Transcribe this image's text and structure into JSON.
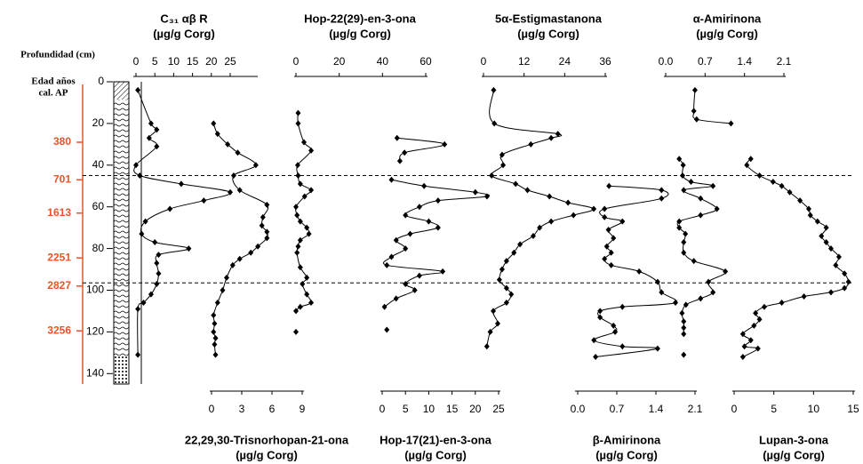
{
  "chart_data": [
    {
      "type": "depth-axis",
      "title": "Profundidad (cm)",
      "ylim": [
        0,
        145
      ],
      "yticks": [
        0,
        20,
        40,
        60,
        80,
        100,
        120,
        140
      ],
      "age_title": [
        "Edad años",
        "cal. AP"
      ],
      "age_color": "#e8542a",
      "age_ticks": [
        {
          "value": 29,
          "label": "380"
        },
        {
          "value": 47,
          "label": "701"
        },
        {
          "value": 63,
          "label": "1613"
        },
        {
          "value": 84.5,
          "label": "2251"
        },
        {
          "value": 98,
          "label": "2827"
        },
        {
          "value": 119.5,
          "label": "3256"
        }
      ],
      "reference_lines": [
        45,
        96.5
      ]
    },
    {
      "type": "profile",
      "title": "C₃₁ αβ R",
      "subtitle": "(µg/g Corg)",
      "axis_side": "top",
      "color": "#000000",
      "xlim": [
        0,
        25
      ],
      "xticks": [
        0,
        5,
        10,
        15,
        20,
        25
      ],
      "depth": [
        4,
        20,
        23,
        27,
        31,
        40,
        45,
        49,
        53,
        57,
        61,
        67,
        73,
        77,
        80,
        83,
        87,
        92,
        97,
        102,
        106,
        109,
        131
      ],
      "values": [
        0.5,
        4,
        5.5,
        3.5,
        5.5,
        0,
        1,
        12,
        25,
        18,
        9,
        2.5,
        1.5,
        5,
        14,
        6,
        5.5,
        6,
        5.5,
        4,
        2,
        0.5,
        0.5
      ]
    },
    {
      "type": "profile",
      "title": "22,29,30-Trisnorhopan-21-ona",
      "subtitle": "(µg/g Corg)",
      "axis_side": "bottom",
      "color": "#000000",
      "xlim": [
        0,
        9
      ],
      "xticks": [
        0,
        3,
        6,
        9
      ],
      "depth": [
        20,
        25,
        30,
        34,
        40,
        45,
        52,
        59,
        65,
        69,
        72,
        75,
        79,
        82,
        85,
        88,
        94,
        100,
        106,
        112,
        116,
        120,
        123,
        126,
        131
      ],
      "values": [
        0.2,
        0.6,
        1.6,
        2.6,
        4.4,
        2.2,
        2.8,
        5.5,
        5.1,
        5,
        5.5,
        5.5,
        4.6,
        3.9,
        2.8,
        2.1,
        1.5,
        1.1,
        0.6,
        0.2,
        0.3,
        0.2,
        0.4,
        0.3,
        0.4
      ]
    },
    {
      "type": "profile",
      "title": "Hop-22(29)-en-3-ona",
      "subtitle": "(µg/g Corg)",
      "axis_side": "top",
      "color": "#000000",
      "xlim": [
        0,
        60
      ],
      "xticks": [
        0,
        20,
        40,
        60
      ],
      "depth": [
        15,
        20,
        29,
        33,
        40,
        45,
        49,
        52,
        55,
        60,
        64,
        67,
        70,
        73,
        76,
        79,
        82,
        89,
        94,
        97,
        102,
        106,
        108,
        110,
        null,
        120
      ],
      "values": [
        1,
        1,
        3.7,
        7,
        0.8,
        1,
        2,
        7,
        4,
        0,
        0.5,
        2,
        5,
        6,
        2,
        1,
        0.5,
        2,
        5,
        3,
        5,
        7,
        2,
        0,
        null,
        0
      ]
    },
    {
      "type": "profile",
      "title": "Hop-17(21)-en-3-ona",
      "subtitle": "(µg/g Corg)",
      "axis_side": "bottom",
      "color": "#000000",
      "xlim": [
        0,
        25
      ],
      "xticks": [
        0,
        5,
        10,
        15,
        20,
        25
      ],
      "depth": [
        27,
        30,
        34,
        38,
        null,
        47,
        50,
        53,
        55,
        57,
        60,
        64,
        67,
        70,
        73,
        76,
        80,
        84,
        88,
        91,
        93,
        97,
        100,
        104,
        108,
        null,
        119
      ],
      "values": [
        3.2,
        13.4,
        4.8,
        3.8,
        null,
        2,
        9,
        20,
        22.5,
        12,
        8,
        5,
        10,
        12,
        6,
        3,
        5,
        2,
        1,
        13,
        8,
        5,
        7,
        3,
        0.5,
        null,
        1
      ]
    },
    {
      "type": "profile",
      "title": "5α-Estigmastanona",
      "subtitle": "(µg/g Corg)",
      "axis_side": "top",
      "color": "#000000",
      "xlim": [
        0,
        36
      ],
      "xticks": [
        0,
        12,
        24,
        36
      ],
      "depth": [
        4,
        20,
        25,
        27,
        30,
        35,
        40,
        45,
        49,
        52,
        55,
        58,
        61,
        64,
        67,
        70,
        74,
        78,
        82,
        86,
        90,
        95,
        99,
        102,
        106,
        110,
        116,
        120,
        127
      ],
      "values": [
        3,
        3.2,
        22,
        20,
        14,
        5.5,
        5.8,
        2.4,
        9.5,
        13,
        19.5,
        25,
        32.6,
        26.6,
        20,
        16.6,
        14.7,
        10.8,
        9,
        6.8,
        5.5,
        4.7,
        6.8,
        8.2,
        6.8,
        2.9,
        4.2,
        2,
        1
      ]
    },
    {
      "type": "profile",
      "title": "β-Amirinona",
      "subtitle": "(µg/g Corg)",
      "axis_side": "bottom",
      "color": "#000000",
      "xlim": [
        0,
        2.1
      ],
      "xticks": [
        {
          "value": 0,
          "label": "0.0"
        },
        0.7,
        1.4,
        2.1
      ],
      "depth": [
        50,
        52,
        56,
        61,
        65,
        67,
        71,
        75,
        79,
        82,
        85,
        88,
        91,
        96,
        101,
        106,
        108,
        110,
        113,
        117,
        120,
        124,
        127,
        128,
        132
      ],
      "values": [
        0.56,
        1.5,
        1.5,
        0.48,
        0.48,
        0.8,
        0.55,
        0.64,
        0.52,
        0.6,
        0.48,
        0.6,
        1.1,
        1.43,
        1.5,
        1.75,
        0.8,
        0.4,
        0.4,
        0.64,
        0.67,
        0.29,
        0.8,
        1.43,
        0.32
      ]
    },
    {
      "type": "profile",
      "title": "α-Amirinona",
      "subtitle": "(µg/g Corg)",
      "axis_side": "top",
      "color": "#000000",
      "xlim": [
        0,
        2.1
      ],
      "xticks": [
        {
          "value": 0,
          "label": "0.0"
        },
        0.7,
        1.4,
        2.1
      ],
      "depth": [
        4,
        14,
        18,
        20,
        null,
        37,
        40,
        45,
        48,
        50,
        52,
        56,
        61,
        64,
        67,
        70,
        73,
        77,
        82,
        86,
        91,
        96,
        101,
        104,
        107,
        111,
        115,
        118,
        121,
        null,
        131
      ],
      "values": [
        0.52,
        0.5,
        0.55,
        1.16,
        null,
        0.24,
        0.31,
        0.3,
        0.45,
        0.84,
        0.32,
        0.62,
        0.91,
        0.62,
        0.24,
        0.24,
        0.35,
        0.32,
        0.32,
        0.5,
        1.06,
        0.76,
        0.84,
        0.62,
        0.36,
        0.29,
        0.32,
        0.32,
        0.32,
        null,
        0.32
      ]
    },
    {
      "type": "profile",
      "title": "Lupan-3-ona",
      "subtitle": "(µg/g Corg)",
      "axis_side": "bottom",
      "color": "#000000",
      "xlim": [
        0,
        15
      ],
      "xticks": [
        0,
        5,
        10,
        15
      ],
      "depth": [
        37,
        40,
        45,
        48,
        50,
        53,
        57,
        61,
        64,
        67,
        70,
        74,
        77,
        80,
        84,
        88,
        92,
        96,
        99,
        101,
        103,
        106,
        108,
        111,
        114,
        117,
        121,
        124,
        127,
        128,
        132
      ],
      "values": [
        2.1,
        1.6,
        3.2,
        4.9,
        6,
        7,
        8.3,
        9.4,
        9.6,
        10.5,
        11.6,
        11,
        11.6,
        12.2,
        13.2,
        12.8,
        13.9,
        14.4,
        13.9,
        12.2,
        8.8,
        6,
        3.8,
        2.7,
        3.2,
        2.5,
        1.1,
        2.1,
        1.3,
        3,
        1.1
      ]
    }
  ]
}
